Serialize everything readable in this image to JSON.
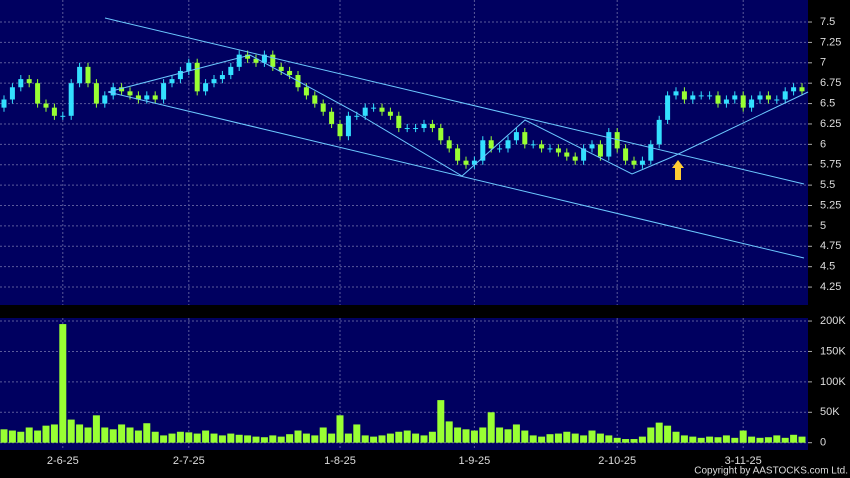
{
  "chart_data": {
    "type": "candlestick",
    "categories": [
      null,
      null,
      null,
      null,
      null,
      null,
      null,
      "2-6-25",
      null,
      null,
      null,
      null,
      null,
      null,
      null,
      null,
      null,
      null,
      null,
      null,
      null,
      null,
      "2-7-25",
      null,
      null,
      null,
      null,
      null,
      null,
      null,
      null,
      null,
      null,
      null,
      null,
      null,
      null,
      null,
      null,
      null,
      "1-8-25",
      null,
      null,
      null,
      null,
      null,
      null,
      null,
      null,
      null,
      null,
      null,
      null,
      null,
      null,
      null,
      "1-9-25",
      null,
      null,
      null,
      null,
      null,
      null,
      null,
      null,
      null,
      null,
      null,
      null,
      null,
      null,
      null,
      null,
      "2-10-25",
      null,
      null,
      null,
      null,
      null,
      null,
      null,
      null,
      null,
      null,
      null,
      null,
      null,
      null,
      "3-11-25",
      null,
      null,
      null,
      null,
      null,
      null,
      null
    ],
    "open": [
      6.45,
      6.55,
      6.7,
      6.8,
      6.75,
      6.5,
      6.45,
      6.35,
      6.35,
      6.75,
      6.95,
      6.75,
      6.5,
      6.6,
      6.7,
      6.65,
      6.6,
      6.55,
      6.6,
      6.55,
      6.75,
      6.8,
      6.9,
      7.0,
      6.65,
      6.75,
      6.8,
      6.85,
      6.95,
      7.1,
      7.05,
      7.0,
      7.1,
      6.95,
      6.9,
      6.85,
      6.7,
      6.6,
      6.5,
      6.4,
      6.25,
      6.1,
      6.35,
      6.35,
      6.45,
      6.45,
      6.4,
      6.35,
      6.2,
      6.2,
      6.2,
      6.25,
      6.2,
      6.05,
      5.95,
      5.8,
      5.75,
      5.8,
      6.05,
      5.95,
      5.95,
      6.05,
      6.15,
      6.0,
      6.0,
      5.95,
      5.95,
      5.9,
      5.85,
      5.8,
      5.95,
      6.0,
      5.85,
      6.15,
      5.95,
      5.8,
      5.75,
      5.8,
      6.0,
      6.3,
      6.6,
      6.65,
      6.55,
      6.6,
      6.6,
      6.6,
      6.5,
      6.55,
      6.6,
      6.45,
      6.55,
      6.6,
      6.55,
      6.55,
      6.65,
      6.7
    ],
    "high": [
      6.6,
      6.75,
      6.85,
      6.85,
      6.8,
      6.55,
      6.5,
      6.4,
      6.8,
      7.0,
      7.0,
      6.8,
      6.65,
      6.75,
      6.75,
      6.7,
      6.65,
      6.65,
      6.65,
      6.8,
      6.85,
      6.95,
      7.05,
      7.05,
      6.8,
      6.85,
      6.9,
      7.0,
      7.15,
      7.15,
      7.1,
      7.15,
      7.15,
      7.0,
      6.95,
      6.9,
      6.75,
      6.65,
      6.55,
      6.45,
      6.3,
      6.4,
      6.4,
      6.5,
      6.5,
      6.5,
      6.45,
      6.4,
      6.25,
      6.25,
      6.3,
      6.3,
      6.25,
      6.1,
      6.0,
      5.85,
      5.85,
      6.1,
      6.1,
      6.0,
      6.1,
      6.2,
      6.2,
      6.05,
      6.05,
      6.0,
      6.0,
      5.95,
      5.9,
      6.0,
      6.05,
      6.05,
      6.2,
      6.2,
      6.0,
      5.85,
      5.85,
      6.05,
      6.35,
      6.65,
      6.7,
      6.7,
      6.65,
      6.65,
      6.65,
      6.65,
      6.6,
      6.65,
      6.65,
      6.6,
      6.65,
      6.65,
      6.6,
      6.7,
      6.75,
      6.75
    ],
    "low": [
      6.4,
      6.5,
      6.65,
      6.7,
      6.45,
      6.4,
      6.3,
      6.3,
      6.3,
      6.7,
      6.7,
      6.45,
      6.45,
      6.55,
      6.6,
      6.55,
      6.5,
      6.5,
      6.5,
      6.5,
      6.7,
      6.75,
      6.85,
      6.6,
      6.6,
      6.7,
      6.75,
      6.8,
      6.9,
      7.0,
      6.95,
      6.95,
      6.9,
      6.85,
      6.8,
      6.65,
      6.55,
      6.45,
      6.35,
      6.2,
      6.05,
      6.05,
      6.3,
      6.3,
      6.4,
      6.35,
      6.3,
      6.15,
      6.15,
      6.15,
      6.15,
      6.15,
      6.0,
      5.9,
      5.75,
      5.7,
      5.7,
      5.75,
      5.9,
      5.9,
      5.9,
      6.0,
      5.95,
      5.95,
      5.9,
      5.9,
      5.85,
      5.8,
      5.75,
      5.75,
      5.9,
      5.8,
      5.8,
      5.9,
      5.75,
      5.7,
      5.7,
      5.75,
      5.95,
      6.25,
      6.55,
      6.5,
      6.5,
      6.55,
      6.55,
      6.45,
      6.45,
      6.5,
      6.4,
      6.4,
      6.5,
      6.5,
      6.5,
      6.5,
      6.6,
      6.6
    ],
    "close": [
      6.55,
      6.7,
      6.8,
      6.75,
      6.5,
      6.45,
      6.35,
      6.35,
      6.75,
      6.95,
      6.75,
      6.5,
      6.6,
      6.7,
      6.65,
      6.6,
      6.55,
      6.6,
      6.55,
      6.75,
      6.8,
      6.9,
      7.0,
      6.65,
      6.75,
      6.8,
      6.85,
      6.95,
      7.1,
      7.05,
      7.0,
      7.1,
      6.95,
      6.9,
      6.85,
      6.7,
      6.6,
      6.5,
      6.4,
      6.25,
      6.1,
      6.35,
      6.35,
      6.45,
      6.45,
      6.4,
      6.35,
      6.2,
      6.2,
      6.2,
      6.25,
      6.2,
      6.05,
      5.95,
      5.8,
      5.75,
      5.8,
      6.05,
      5.95,
      5.95,
      6.05,
      6.15,
      6.0,
      6.0,
      5.95,
      5.95,
      5.9,
      5.85,
      5.8,
      5.95,
      6.0,
      5.85,
      6.15,
      5.95,
      5.8,
      5.75,
      5.8,
      6.0,
      6.3,
      6.6,
      6.65,
      6.55,
      6.6,
      6.6,
      6.6,
      6.5,
      6.55,
      6.6,
      6.45,
      6.55,
      6.6,
      6.55,
      6.55,
      6.65,
      6.7,
      6.65
    ],
    "up_color": "#33e0ff",
    "down_color": "#99ff33",
    "ylim": [
      4.03,
      7.77
    ],
    "yticks": [
      4.25,
      4.5,
      4.75,
      5,
      5.25,
      5.5,
      5.75,
      6,
      6.25,
      6.5,
      6.75,
      7,
      7.25,
      7.5
    ],
    "volume": {
      "color": "#99ff33",
      "values": [
        22000,
        20000,
        18000,
        25000,
        20000,
        28000,
        30000,
        195000,
        38000,
        30000,
        25000,
        45000,
        25000,
        22000,
        30000,
        25000,
        20000,
        32000,
        18000,
        12000,
        15000,
        18000,
        17000,
        15000,
        20000,
        15000,
        12000,
        15000,
        13000,
        12000,
        10000,
        9000,
        12000,
        10000,
        14000,
        20000,
        15000,
        12000,
        25000,
        15000,
        45000,
        15000,
        30000,
        12000,
        10000,
        12000,
        15000,
        18000,
        20000,
        15000,
        12000,
        18000,
        70000,
        35000,
        25000,
        22000,
        20000,
        25000,
        50000,
        25000,
        22000,
        30000,
        20000,
        12000,
        10000,
        14000,
        15000,
        18000,
        15000,
        12000,
        20000,
        15000,
        12000,
        8000,
        6000,
        6000,
        10000,
        25000,
        33000,
        28000,
        18000,
        12000,
        10000,
        8000,
        10000,
        9000,
        12000,
        8000,
        20000,
        10000,
        8000,
        9000,
        12000,
        8000,
        13000,
        10000
      ],
      "ylim": [
        -12000,
        205000
      ],
      "yticks": [
        0,
        {
          "value": 50000,
          "label": "50K"
        },
        {
          "value": 100000,
          "label": "100K"
        },
        {
          "value": 150000,
          "label": "150K"
        },
        {
          "value": 200000,
          "label": "200K"
        }
      ]
    },
    "grid": true,
    "copyright": "Copyright by AASTOCKS.com Ltd."
  }
}
